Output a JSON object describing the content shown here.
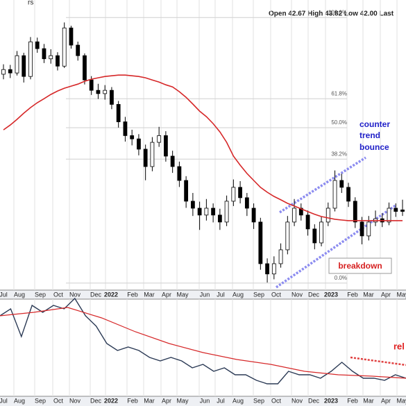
{
  "chart_data": {
    "type": "candlestick",
    "title": "rs",
    "header": "Open 42.67  High 43.82  Low 42.00  Last",
    "log": true,
    "ylim": [
      34.8,
      73.8
    ],
    "grid": true,
    "x_labels": [
      "Jul",
      "Aug",
      "Sep",
      "Oct",
      "Nov",
      "Dec",
      "2022",
      "Feb",
      "Mar",
      "Apr",
      "May",
      "Jun",
      "Jul",
      "Aug",
      "Sep",
      "Oct",
      "Nov",
      "Dec",
      "2023",
      "Feb",
      "Mar",
      "Apr",
      "May"
    ],
    "candles": {
      "open": [
        60.8,
        61.55,
        61.0,
        63.82,
        60.45,
        66.17,
        65.0,
        63.3,
        63.82,
        62.1,
        68.61,
        65.6,
        63.82,
        59.9,
        58.3,
        57.8,
        58.3,
        56.2,
        53.7,
        51.8,
        51.36,
        50.0,
        47.78,
        50.9,
        51.8,
        49.1,
        47.78,
        46.08,
        43.65,
        42.86,
        42.1,
        42.86,
        42.1,
        41.34,
        43.65,
        45.26,
        44.05,
        42.86,
        41.34,
        37.08,
        36.1,
        37.08,
        38.45,
        41.34,
        42.86,
        42.1,
        40.6,
        39.15,
        41.34,
        42.86,
        46.08,
        45.26,
        43.65,
        41.34,
        39.87,
        41.34,
        41.7,
        41.34,
        42.86,
        42.67
      ],
      "high": [
        62.4,
        62.3,
        64.6,
        64.3,
        67.0,
        66.9,
        65.8,
        64.9,
        64.4,
        69.6,
        69.0,
        66.2,
        64.2,
        60.5,
        59.3,
        59.1,
        58.8,
        56.7,
        54.4,
        52.6,
        52.0,
        50.6,
        51.6,
        53.0,
        52.4,
        49.8,
        48.4,
        46.6,
        44.6,
        43.6,
        43.9,
        43.4,
        42.8,
        44.3,
        46.2,
        46.0,
        44.6,
        43.4,
        41.8,
        37.6,
        37.8,
        39.1,
        42.0,
        43.9,
        43.4,
        42.6,
        41.1,
        41.9,
        43.5,
        47.3,
        46.9,
        45.8,
        44.1,
        41.9,
        42.0,
        42.6,
        42.3,
        43.5,
        43.4,
        43.82
      ],
      "low": [
        60.0,
        60.2,
        60.6,
        59.5,
        60.0,
        64.3,
        62.6,
        62.5,
        61.4,
        61.8,
        65.0,
        63.0,
        59.2,
        57.6,
        57.0,
        56.9,
        55.5,
        52.9,
        51.0,
        50.5,
        49.2,
        46.1,
        47.2,
        50.3,
        48.4,
        47.0,
        45.3,
        42.9,
        42.0,
        40.5,
        41.5,
        41.3,
        40.5,
        40.9,
        43.1,
        43.4,
        42.0,
        40.6,
        36.5,
        35.3,
        35.6,
        36.7,
        38.0,
        40.9,
        41.5,
        39.9,
        38.5,
        38.8,
        40.9,
        42.5,
        44.6,
        43.0,
        40.7,
        39.0,
        39.4,
        40.9,
        40.8,
        41.0,
        41.9,
        42.0
      ],
      "close": [
        61.55,
        61.0,
        63.82,
        60.45,
        66.17,
        65.0,
        63.3,
        63.82,
        62.1,
        68.61,
        65.6,
        63.82,
        59.9,
        58.3,
        57.8,
        58.3,
        56.2,
        53.7,
        51.8,
        51.36,
        50.0,
        47.78,
        50.9,
        51.8,
        49.1,
        47.78,
        46.08,
        43.65,
        42.86,
        42.1,
        42.86,
        42.1,
        41.34,
        43.65,
        45.26,
        44.05,
        42.86,
        41.34,
        37.08,
        36.1,
        37.08,
        38.45,
        41.34,
        42.86,
        42.1,
        40.6,
        39.15,
        41.34,
        42.86,
        46.08,
        45.26,
        43.65,
        41.34,
        39.87,
        41.34,
        41.7,
        41.34,
        42.86,
        42.5,
        42.5
      ]
    },
    "moving_average": {
      "color": "#d62728",
      "values": [
        52.59,
        53.25,
        54.04,
        54.92,
        55.73,
        56.44,
        57.04,
        57.67,
        58.2,
        58.62,
        58.94,
        59.25,
        59.69,
        60.02,
        60.24,
        60.45,
        60.56,
        60.67,
        60.67,
        60.56,
        60.45,
        60.24,
        59.9,
        59.58,
        59.15,
        58.83,
        58.09,
        57.25,
        56.24,
        55.22,
        54.43,
        53.45,
        52.3,
        50.9,
        49.1,
        47.95,
        46.93,
        46.08,
        45.26,
        44.68,
        44.2,
        43.81,
        43.41,
        43.1,
        42.79,
        42.48,
        42.18,
        41.94,
        41.79,
        41.64,
        41.56,
        41.49,
        41.49,
        41.49,
        41.49,
        41.49,
        41.49,
        41.49,
        41.49,
        41.49
      ]
    },
    "fib_levels": [
      {
        "value": 70.5,
        "label": "100.0%"
      },
      {
        "value": 57.03,
        "label": "61.8%"
      },
      {
        "value": 52.88,
        "label": "50.0%"
      },
      {
        "value": 48.72,
        "label": "38.2%"
      },
      {
        "value": 35.25,
        "label": "0.0%"
      }
    ],
    "annotations": {
      "bounce": [
        "counter",
        "trend",
        "bounce"
      ],
      "breakdown": "breakdown"
    },
    "lower_panel": {
      "ylim": [
        0,
        142
      ],
      "annotation": "rel",
      "series": [
        {
          "color": "#2b3a55",
          "values": [
            115,
            125,
            85,
            130,
            120,
            130,
            125,
            140,
            115,
            100,
            75,
            65,
            70,
            65,
            55,
            50,
            55,
            50,
            40,
            45,
            35,
            40,
            30,
            30,
            22,
            17,
            17,
            35,
            30,
            30,
            25,
            35,
            48,
            35,
            25,
            25,
            22,
            30,
            25
          ]
        },
        {
          "color": "#d62728",
          "values": [
            115,
            120,
            127,
            112,
            92,
            75,
            62,
            52,
            45,
            35,
            30,
            28,
            25
          ]
        }
      ]
    }
  }
}
